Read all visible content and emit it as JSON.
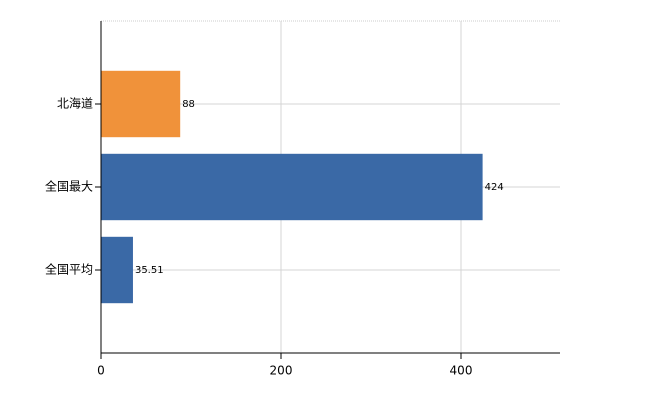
{
  "chart_data": {
    "type": "bar",
    "orientation": "horizontal",
    "categories": [
      "北海道",
      "全国最大",
      "全国平均"
    ],
    "values": [
      88,
      424,
      35.51
    ],
    "colors": [
      "#f0923a",
      "#3a69a6",
      "#3a69a6"
    ],
    "xlim": [
      0,
      510
    ],
    "xticks": [
      0,
      200,
      400
    ],
    "grid": true
  }
}
